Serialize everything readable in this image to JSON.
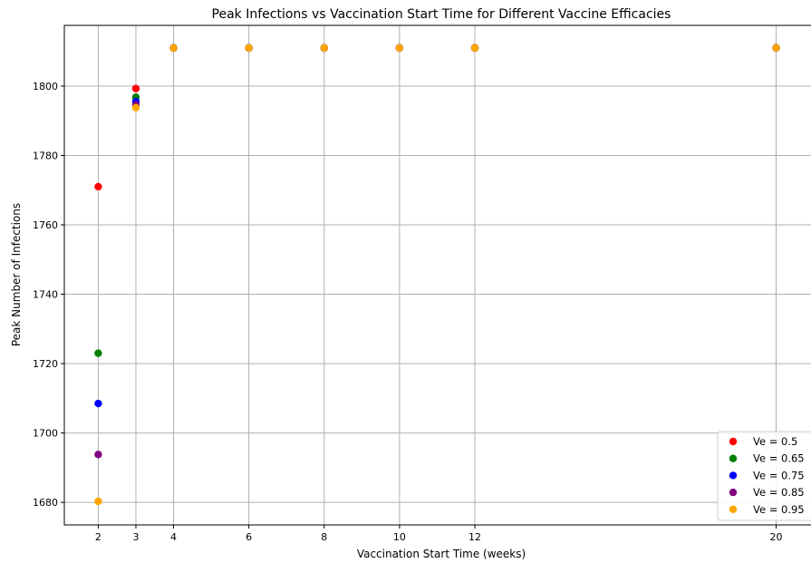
{
  "chart_data": {
    "type": "scatter",
    "title": "Peak Infections vs Vaccination Start Time for Different Vaccine Efficacies",
    "xlabel": "Vaccination Start Time (weeks)",
    "ylabel": "Peak Number of Infections",
    "xlim": [
      1.1,
      20.95
    ],
    "ylim": [
      1673.5,
      1817.5
    ],
    "x_ticks": [
      2,
      3,
      4,
      6,
      8,
      10,
      12,
      20
    ],
    "y_ticks": [
      1680,
      1700,
      1720,
      1740,
      1760,
      1780,
      1800
    ],
    "grid": true,
    "legend_position": "lower-right",
    "series": [
      {
        "name": "Ve = 0.5",
        "color": "#ff0000",
        "x": [
          2,
          3,
          4,
          6,
          8,
          10,
          12,
          20
        ],
        "y": [
          1771,
          1799.3,
          1811,
          1811,
          1811,
          1811,
          1811,
          1811
        ]
      },
      {
        "name": "Ve = 0.65",
        "color": "#008000",
        "x": [
          2,
          3,
          4,
          6,
          8,
          10,
          12,
          20
        ],
        "y": [
          1723,
          1796.8,
          1811,
          1811,
          1811,
          1811,
          1811,
          1811
        ]
      },
      {
        "name": "Ve = 0.75",
        "color": "#0000ff",
        "x": [
          2,
          3,
          4,
          6,
          8,
          10,
          12,
          20
        ],
        "y": [
          1708.5,
          1795.5,
          1811,
          1811,
          1811,
          1811,
          1811,
          1811
        ]
      },
      {
        "name": "Ve = 0.85",
        "color": "#800080",
        "x": [
          2,
          3,
          4,
          6,
          8,
          10,
          12,
          20
        ],
        "y": [
          1693.8,
          1794.6,
          1811,
          1811,
          1811,
          1811,
          1811,
          1811
        ]
      },
      {
        "name": "Ve = 0.95",
        "color": "#ffa500",
        "x": [
          2,
          3,
          4,
          6,
          8,
          10,
          12,
          20
        ],
        "y": [
          1680.3,
          1793.8,
          1811,
          1811,
          1811,
          1811,
          1811,
          1811
        ]
      }
    ]
  }
}
